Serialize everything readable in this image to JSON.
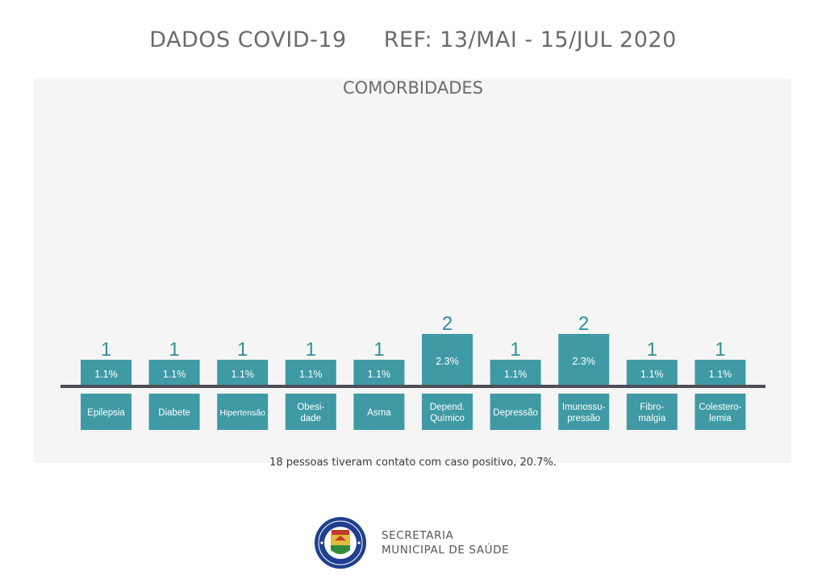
{
  "header": {
    "left": "DADOS COVID-19",
    "right": "REF: 13/MAI - 15/JUL 2020"
  },
  "chart_data": {
    "type": "bar",
    "title": "COMORBIDADES",
    "categories": [
      [
        "Epilepsia"
      ],
      [
        "Diabete"
      ],
      [
        "Hipertensão"
      ],
      [
        "Obesi-",
        "dade"
      ],
      [
        "Asma"
      ],
      [
        "Depend.",
        "Químico"
      ],
      [
        "Depressão"
      ],
      [
        "Imunossu-",
        "pressão"
      ],
      [
        "Fibro-",
        "malgia"
      ],
      [
        "Colestero-",
        "lemia"
      ]
    ],
    "values": [
      1,
      1,
      1,
      1,
      1,
      2,
      1,
      2,
      1,
      1
    ],
    "percent_labels": [
      "1.1%",
      "1.1%",
      "1.1%",
      "1.1%",
      "1.1%",
      "2.3%",
      "1.1%",
      "2.3%",
      "1.1%",
      "1.1%"
    ],
    "ylim": [
      0,
      2
    ],
    "grid": false,
    "colors": {
      "bar": "#3f9aa5",
      "value_text": "#2f8f9c",
      "axis": "#4e4e58"
    }
  },
  "footnote": "18 pessoas tiveram contato com caso positivo, 20.7%.",
  "footer": {
    "org_line1": "SECRETARIA",
    "org_line2": "MUNICIPAL DE SAÚDE",
    "seal": {
      "top_text": "PREFEITURA MUNICIPAL",
      "bottom_text": "CANELA"
    }
  }
}
